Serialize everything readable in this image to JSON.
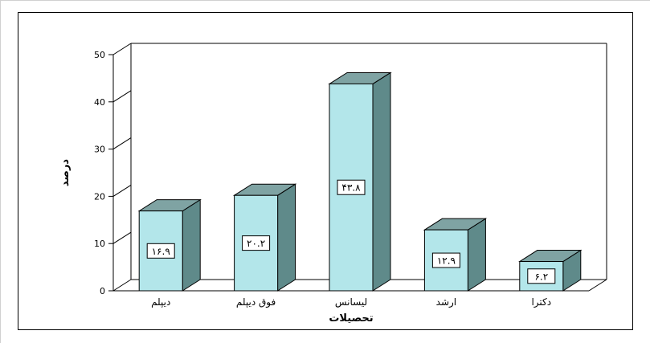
{
  "chart_data": {
    "type": "bar",
    "categories": [
      "دیپلم",
      "فوق دیپلم",
      "لیسانس",
      "ارشد",
      "دکترا"
    ],
    "values": [
      16.9,
      20.2,
      43.8,
      12.9,
      6.2
    ],
    "data_labels": [
      "۱۶.۹",
      "۲۰.۲",
      "۴۳.۸",
      "۱۲.۹",
      "۶.۲"
    ],
    "xlabel": "تحصیلات",
    "ylabel": "درصد",
    "ylim": [
      0,
      50
    ],
    "yticks": [
      0,
      10,
      20,
      30,
      40,
      50
    ],
    "grid": false,
    "style": "3d",
    "colors": {
      "front": "#b3e6ea",
      "side": "#5f8a8a",
      "top": "#7fa3a3",
      "edge": "#000000"
    }
  }
}
